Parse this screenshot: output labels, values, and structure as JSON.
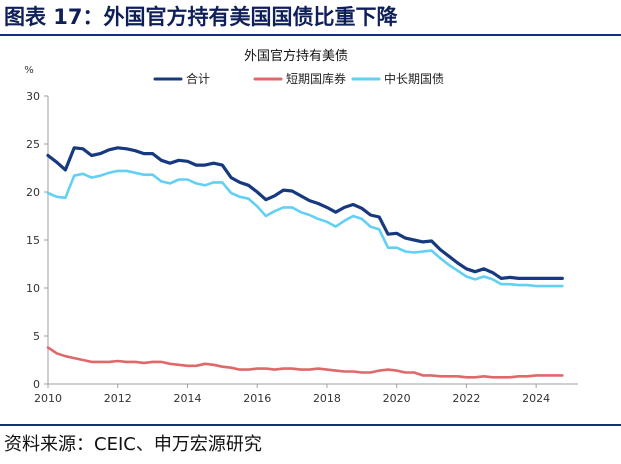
{
  "figure": {
    "title": "图表 17：外国官方持有美国国债比重下降",
    "source": "资料来源：CEIC、申万宏源研究"
  },
  "colors": {
    "brand": "#13307a",
    "series": [
      "#17397f",
      "#e0686a",
      "#62d0f5"
    ]
  },
  "chart_data": {
    "type": "line",
    "title": "外国官方持有美债",
    "ylabel": "%",
    "xlabel": "",
    "xlim": [
      2010,
      2025.2
    ],
    "ylim": [
      0,
      30
    ],
    "xticks": [
      "2010",
      "2012",
      "2014",
      "2016",
      "2018",
      "2020",
      "2022",
      "2024"
    ],
    "yticks": [
      "0",
      "5",
      "10",
      "15",
      "20",
      "25",
      "30"
    ],
    "grid": false,
    "legend_position": "top",
    "x": [
      2010.0,
      2010.25,
      2010.5,
      2010.75,
      2011.0,
      2011.25,
      2011.5,
      2011.75,
      2012.0,
      2012.25,
      2012.5,
      2012.75,
      2013.0,
      2013.25,
      2013.5,
      2013.75,
      2014.0,
      2014.25,
      2014.5,
      2014.75,
      2015.0,
      2015.25,
      2015.5,
      2015.75,
      2016.0,
      2016.25,
      2016.5,
      2016.75,
      2017.0,
      2017.25,
      2017.5,
      2017.75,
      2018.0,
      2018.25,
      2018.5,
      2018.75,
      2019.0,
      2019.25,
      2019.5,
      2019.75,
      2020.0,
      2020.25,
      2020.5,
      2020.75,
      2021.0,
      2021.25,
      2021.5,
      2021.75,
      2022.0,
      2022.25,
      2022.5,
      2022.75,
      2023.0,
      2023.25,
      2023.5,
      2023.75,
      2024.0,
      2024.25,
      2024.5,
      2024.75
    ],
    "series": [
      {
        "name": "合计",
        "values": [
          23.8,
          23.1,
          22.3,
          24.6,
          24.5,
          23.8,
          24.0,
          24.4,
          24.6,
          24.5,
          24.3,
          24.0,
          24.0,
          23.3,
          23.0,
          23.3,
          23.2,
          22.8,
          22.8,
          23.0,
          22.8,
          21.5,
          21.0,
          20.7,
          20.0,
          19.2,
          19.6,
          20.2,
          20.1,
          19.6,
          19.1,
          18.8,
          18.4,
          17.9,
          18.4,
          18.7,
          18.3,
          17.6,
          17.4,
          15.6,
          15.7,
          15.2,
          15.0,
          14.8,
          14.9,
          14.0,
          13.3,
          12.6,
          12.0,
          11.7,
          12.0,
          11.6,
          11.0,
          11.1,
          11.0,
          11.0,
          11.0,
          11.0,
          11.0,
          11.0
        ]
      },
      {
        "name": "短期国库券",
        "values": [
          3.8,
          3.2,
          2.9,
          2.7,
          2.5,
          2.3,
          2.3,
          2.3,
          2.4,
          2.3,
          2.3,
          2.2,
          2.3,
          2.3,
          2.1,
          2.0,
          1.9,
          1.9,
          2.1,
          2.0,
          1.8,
          1.7,
          1.5,
          1.5,
          1.6,
          1.6,
          1.5,
          1.6,
          1.6,
          1.5,
          1.5,
          1.6,
          1.5,
          1.4,
          1.3,
          1.3,
          1.2,
          1.2,
          1.4,
          1.5,
          1.4,
          1.2,
          1.2,
          0.9,
          0.9,
          0.8,
          0.8,
          0.8,
          0.7,
          0.7,
          0.8,
          0.7,
          0.7,
          0.7,
          0.8,
          0.8,
          0.9,
          0.9,
          0.9,
          0.9
        ]
      },
      {
        "name": "中长期国债",
        "values": [
          19.9,
          19.5,
          19.4,
          21.7,
          21.9,
          21.5,
          21.7,
          22.0,
          22.2,
          22.2,
          22.0,
          21.8,
          21.8,
          21.1,
          20.9,
          21.3,
          21.3,
          20.9,
          20.7,
          21.0,
          21.0,
          19.9,
          19.5,
          19.3,
          18.5,
          17.5,
          18.0,
          18.4,
          18.4,
          17.9,
          17.6,
          17.2,
          16.9,
          16.4,
          17.0,
          17.5,
          17.2,
          16.4,
          16.1,
          14.2,
          14.2,
          13.8,
          13.7,
          13.8,
          13.9,
          13.1,
          12.4,
          11.8,
          11.2,
          10.9,
          11.2,
          10.9,
          10.4,
          10.4,
          10.3,
          10.3,
          10.2,
          10.2,
          10.2,
          10.2
        ]
      }
    ]
  }
}
